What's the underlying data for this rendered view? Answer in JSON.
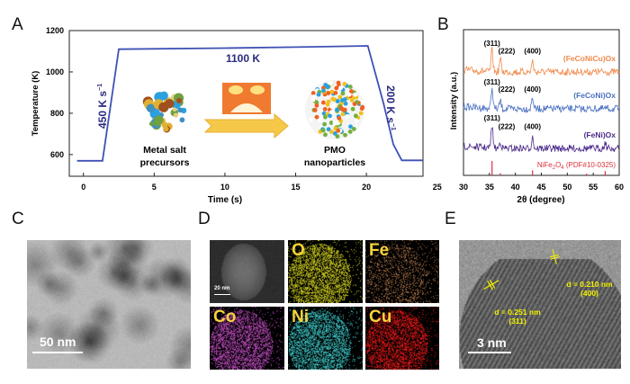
{
  "panels": {
    "a": "A",
    "b": "B",
    "c": "C",
    "d": "D",
    "e": "E"
  },
  "chart_data": [
    {
      "type": "line",
      "panel": "A",
      "xlabel": "Time (s)",
      "ylabel": "Temperature (K)",
      "xlim": [
        -1,
        24
      ],
      "ylim": [
        495,
        1200
      ],
      "xticks": [
        0,
        5,
        10,
        15,
        20,
        25
      ],
      "yticks": [
        600,
        800,
        1000,
        1200
      ],
      "series": [
        {
          "color": "#3f51b5",
          "points": [
            [
              -0.45,
              570
            ],
            [
              1.35,
              570
            ],
            [
              2.5,
              1110
            ],
            [
              10,
              1115
            ],
            [
              15,
              1120
            ],
            [
              20.1,
              1126
            ],
            [
              21.2,
              850
            ],
            [
              21.9,
              650
            ],
            [
              22.5,
              572
            ],
            [
              24,
              572
            ]
          ]
        }
      ],
      "annotations": {
        "plateau": "1100 K",
        "heating_rate": "450 K s",
        "cooling_rate": "200 K s",
        "rate_exponent": "−1",
        "precursors": [
          "Metal salt",
          "precursors"
        ],
        "product": [
          "PMO",
          "nanoparticles"
        ]
      }
    },
    {
      "type": "line",
      "panel": "B",
      "xlabel": "2θ (degree)",
      "ylabel": "Intensity (a.u.)",
      "xlim": [
        30,
        60
      ],
      "xticks": [
        30,
        35,
        40,
        45,
        50,
        55,
        60
      ],
      "series": [
        {
          "name": "(FeCoNiCu)Ox",
          "color": "#f08a4b",
          "peaks": [
            {
              "two_theta": 35.5,
              "hkl": "(311)",
              "height": 1.0
            },
            {
              "two_theta": 37.1,
              "hkl": "(222)",
              "height": 0.6
            },
            {
              "two_theta": 43.3,
              "hkl": "(400)",
              "height": 0.5
            }
          ]
        },
        {
          "name": "(FeCoNi)Ox",
          "color": "#4a70c0",
          "peaks": [
            {
              "two_theta": 35.5,
              "hkl": "(311)",
              "height": 1.0
            },
            {
              "two_theta": 37.1,
              "hkl": "(222)",
              "height": 0.4
            },
            {
              "two_theta": 43.3,
              "hkl": "(400)",
              "height": 0.6
            }
          ]
        },
        {
          "name": "(FeNi)Ox",
          "color": "#4b2a8a",
          "peaks": [
            {
              "two_theta": 35.5,
              "hkl": "(311)",
              "height": 1.0
            },
            {
              "two_theta": 37.1,
              "hkl": "(222)",
              "height": 0.3
            },
            {
              "two_theta": 43.3,
              "hkl": "(400)",
              "height": 0.5
            },
            {
              "two_theta": 57.3,
              "hkl": "",
              "height": 0.25
            }
          ]
        }
      ],
      "reference": {
        "label_pre": "NiFe",
        "sub1": "2",
        "label_mid": "O",
        "sub2": "4",
        "label_post": " (PDF#10-0325)",
        "color": "#e0303a",
        "lines": [
          {
            "two_theta": 35.5,
            "height": 1.0
          },
          {
            "two_theta": 37.1,
            "height": 0.15
          },
          {
            "two_theta": 43.3,
            "height": 0.35
          },
          {
            "two_theta": 53.7,
            "height": 0.12
          },
          {
            "two_theta": 57.3,
            "height": 0.3
          }
        ]
      }
    }
  ],
  "images": {
    "tem": {
      "scale_bar": "50 nm"
    },
    "eds": {
      "scale_bar": "20 nm",
      "maps": [
        {
          "element": "O",
          "color": "#d8d820"
        },
        {
          "element": "Fe",
          "color": "#c08050"
        },
        {
          "element": "Co",
          "color": "#c850c8"
        },
        {
          "element": "Ni",
          "color": "#40d0d0"
        },
        {
          "element": "Cu",
          "color": "#ee1818"
        }
      ]
    },
    "hrtem": {
      "scale_bar": "3 nm",
      "fringe1": {
        "d": "d = 0.210 nm",
        "hkl": "(400)"
      },
      "fringe2": {
        "d": "d = 0.251 nm",
        "hkl": "(311)"
      }
    }
  }
}
